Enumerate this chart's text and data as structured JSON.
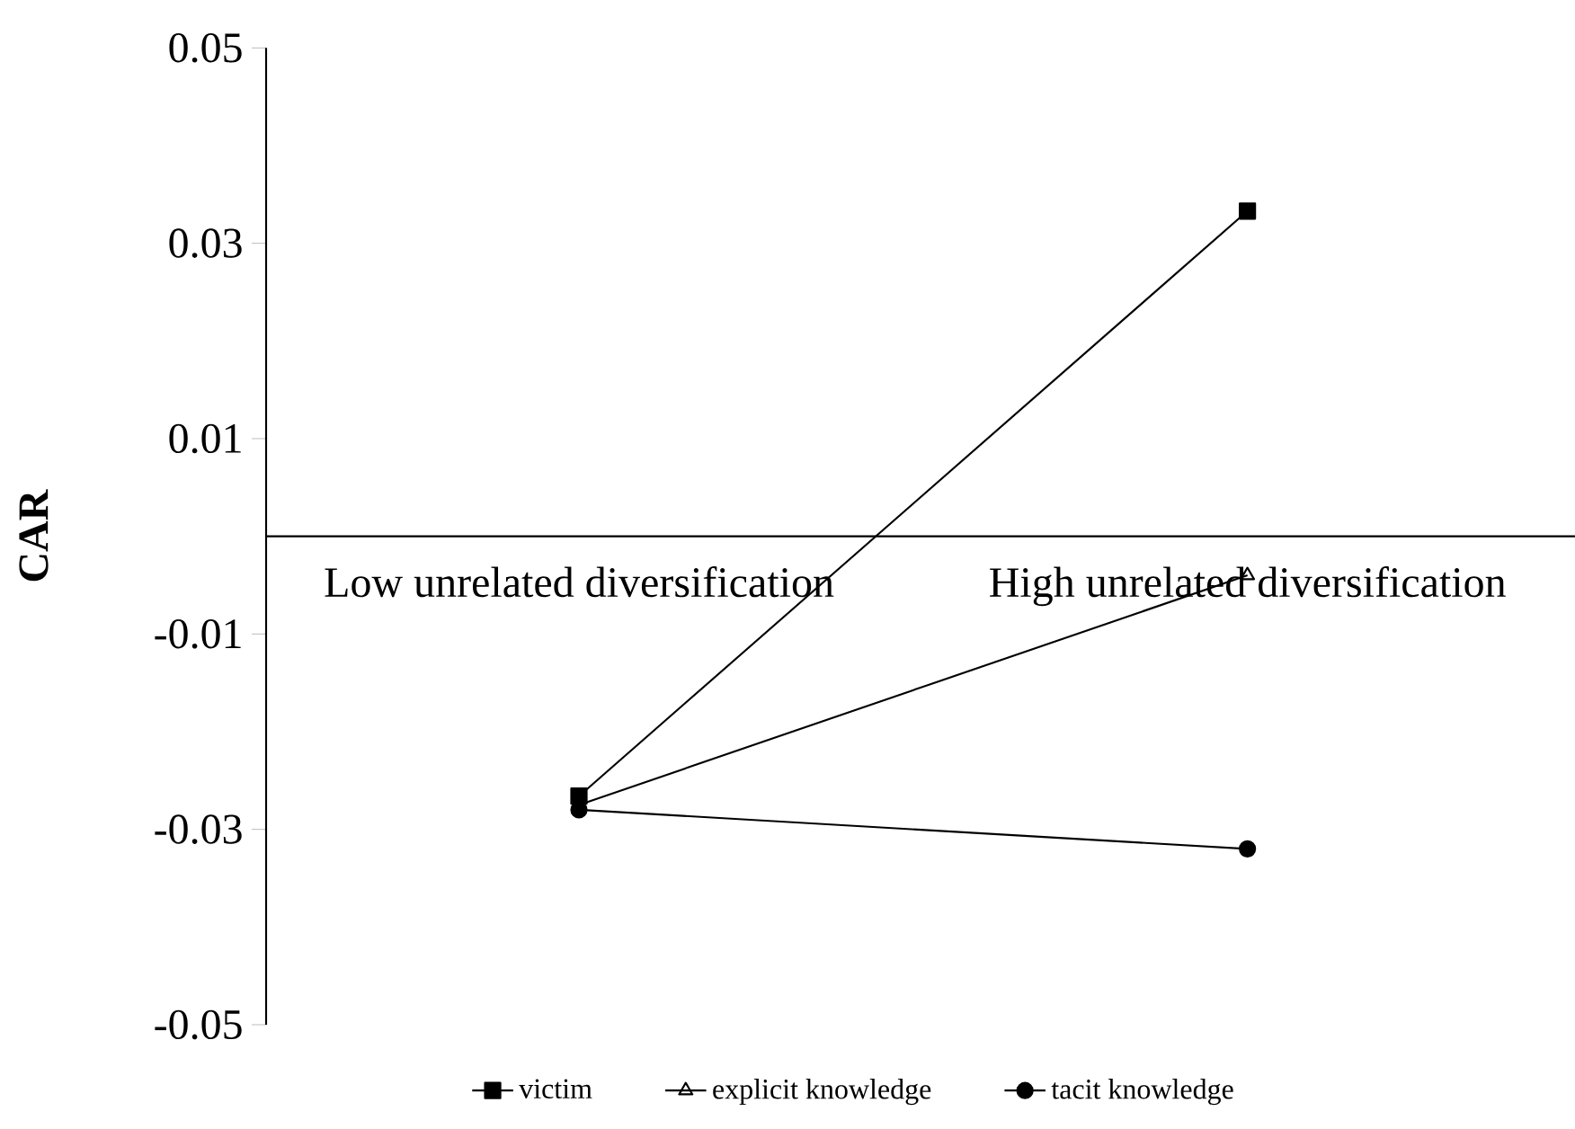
{
  "chart_data": {
    "type": "line",
    "ylabel": "CAR",
    "categories": [
      "Low unrelated diversification",
      "High unrelated diversification"
    ],
    "series": [
      {
        "name": "victim",
        "color": "#000000",
        "marker": "square",
        "values": [
          -0.0266,
          0.0333
        ]
      },
      {
        "name": "explicit knowledge",
        "color": "#000000",
        "marker": "triangle",
        "values": [
          -0.0275,
          -0.004
        ]
      },
      {
        "name": "tacit knowledge",
        "color": "#000000",
        "marker": "circle",
        "values": [
          -0.028,
          -0.032
        ]
      }
    ],
    "ylim": [
      -0.05,
      0.05
    ],
    "yticks": [
      -0.05,
      -0.03,
      -0.01,
      0.01,
      0.03,
      0.05
    ],
    "legend": "bottom",
    "grid": false
  }
}
